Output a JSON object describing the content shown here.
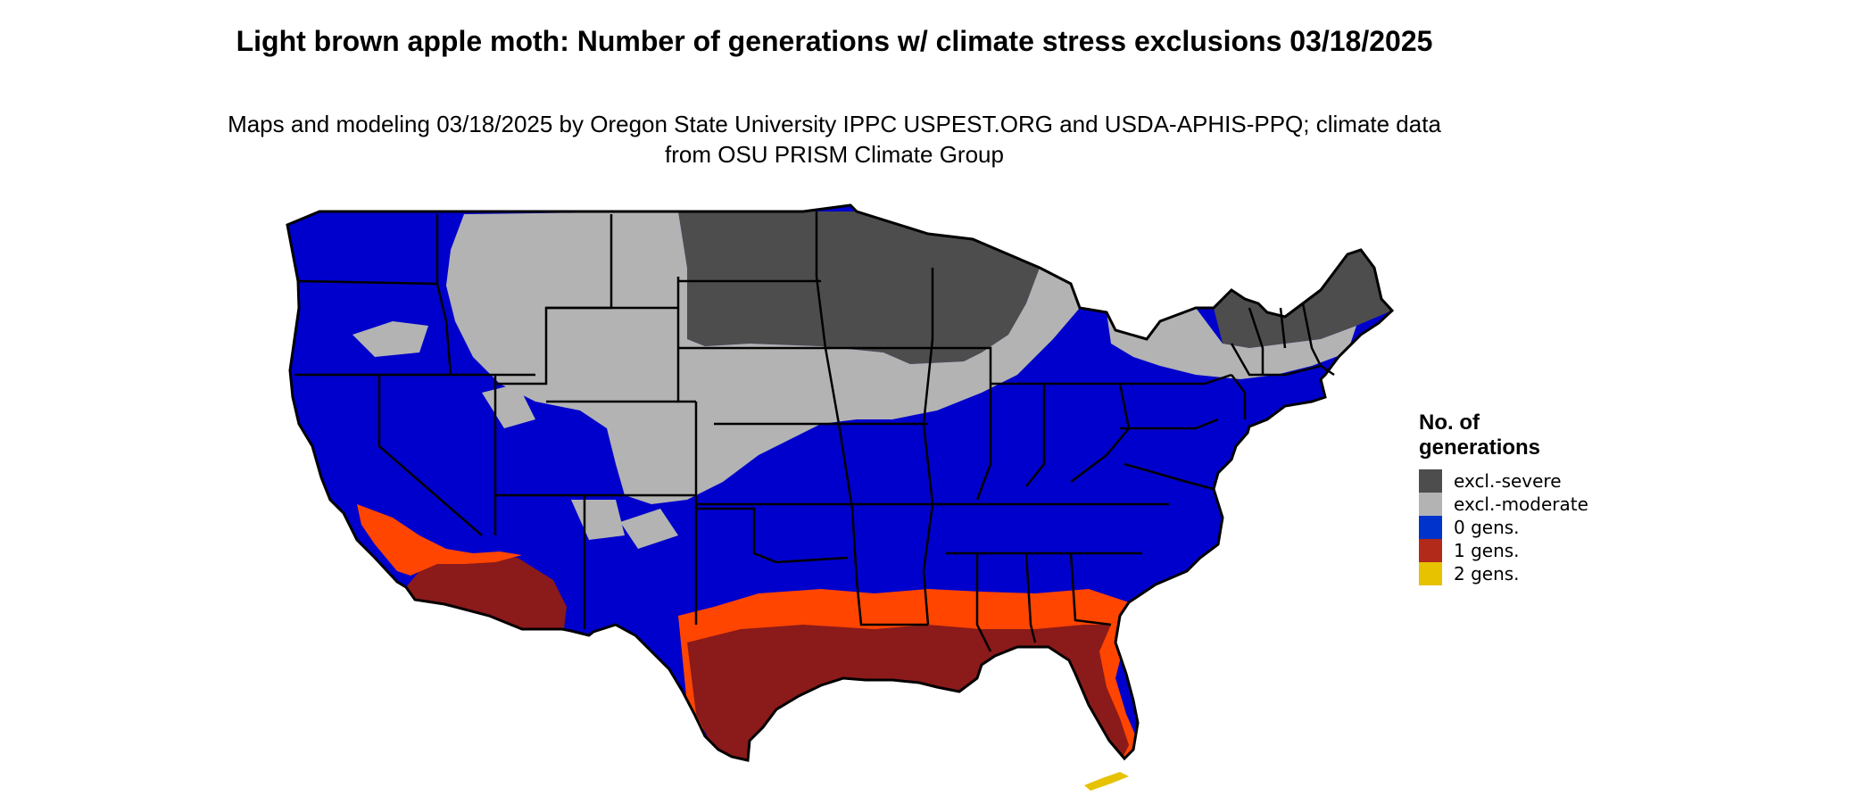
{
  "title": "Light brown apple moth: Number of generations w/ climate stress exclusions 03/18/2025",
  "subtitle": "Maps and modeling 03/18/2025 by Oregon State University IPPC USPEST.ORG and USDA-APHIS-PPQ; climate data from OSU PRISM Climate Group",
  "legend": {
    "title": "No. of generations",
    "items": [
      {
        "label": "excl.-severe",
        "color": "#4d4d4d"
      },
      {
        "label": "excl.-moderate",
        "color": "#b3b3b3"
      },
      {
        "label": "0 gens.",
        "color": "#0000cc"
      },
      {
        "label": "1 gens.",
        "color": "#8b1a1a"
      },
      {
        "label": "2 gens.",
        "color": "#e6c200"
      }
    ]
  },
  "colors": {
    "excl_severe": "#4d4d4d",
    "excl_moderate": "#b3b3b3",
    "zero_gens": "#0000cc",
    "one_gens": "#8b1a1a",
    "one_gens_transition": "#ff4500",
    "two_gens": "#e6c200",
    "state_borders": "#000000"
  }
}
